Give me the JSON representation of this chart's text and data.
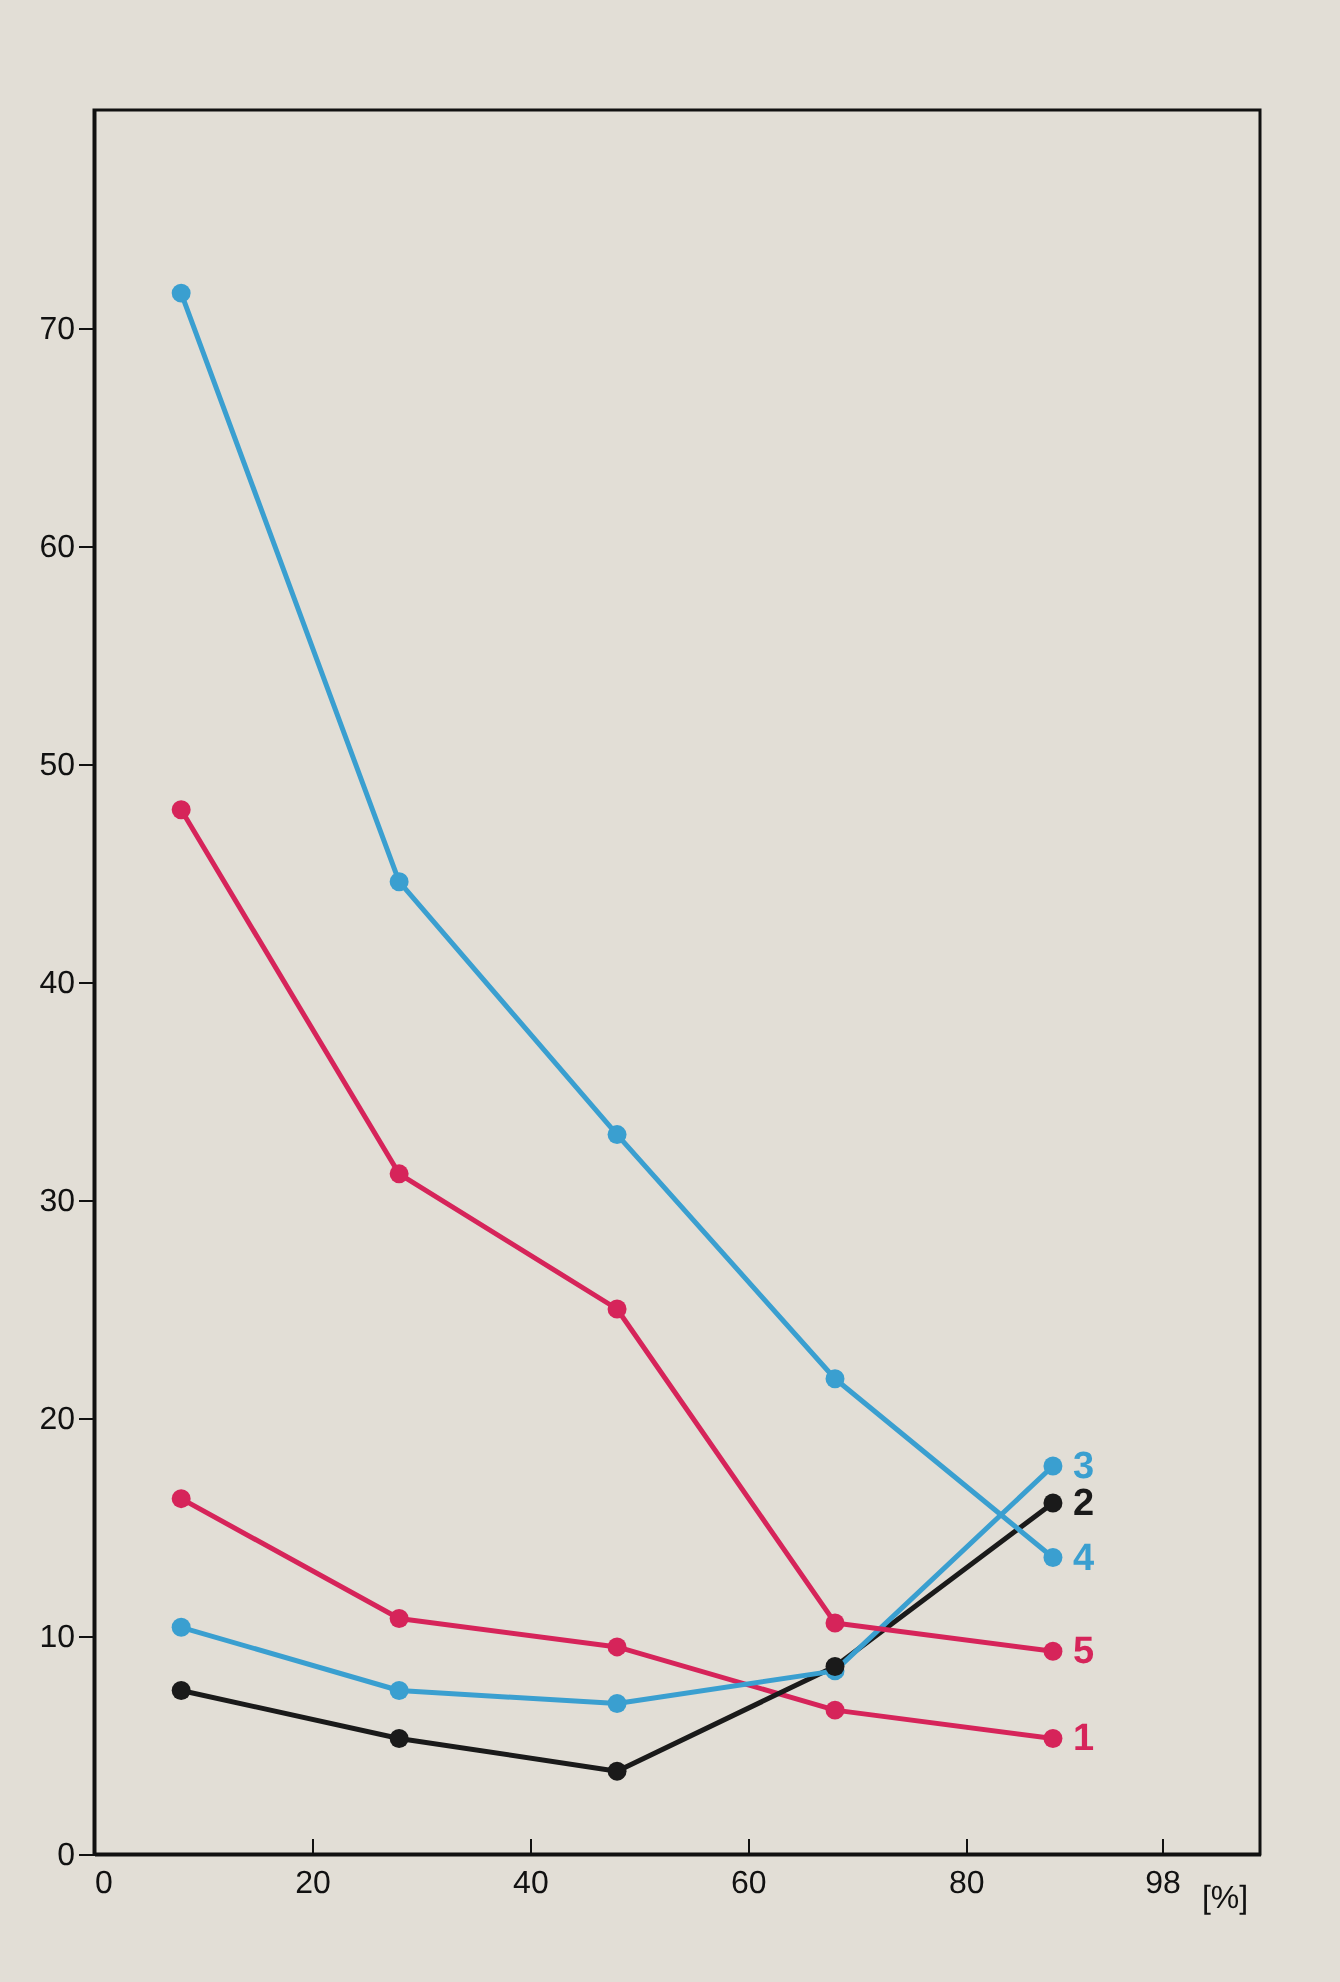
{
  "chart_data": {
    "type": "line",
    "xlabel": "[%]",
    "x": [
      8,
      28,
      48,
      68,
      88
    ],
    "series": [
      {
        "name": "1",
        "color": "#d6245a",
        "values": [
          16.3,
          10.8,
          9.5,
          6.6,
          5.3
        ]
      },
      {
        "name": "2",
        "color": "#1a1a1a",
        "values": [
          7.5,
          5.3,
          3.8,
          8.6,
          16.1
        ]
      },
      {
        "name": "3",
        "color": "#3a9fd0",
        "values": [
          10.4,
          7.5,
          6.9,
          8.4,
          17.8
        ]
      },
      {
        "name": "4",
        "color": "#3a9fd0",
        "values": [
          71.6,
          44.6,
          33.0,
          21.8,
          13.6
        ]
      },
      {
        "name": "5",
        "color": "#d6245a",
        "values": [
          47.9,
          31.2,
          25.0,
          10.6,
          9.3
        ]
      }
    ],
    "xlim": [
      0,
      107
    ],
    "xticks": [
      0,
      20,
      40,
      60,
      80,
      98
    ],
    "ylim": [
      0,
      80
    ],
    "yticks": [
      0,
      10,
      20,
      30,
      40,
      50,
      60,
      70
    ],
    "marker": "circle",
    "line_style": "solid",
    "grid": false,
    "legend": false
  }
}
